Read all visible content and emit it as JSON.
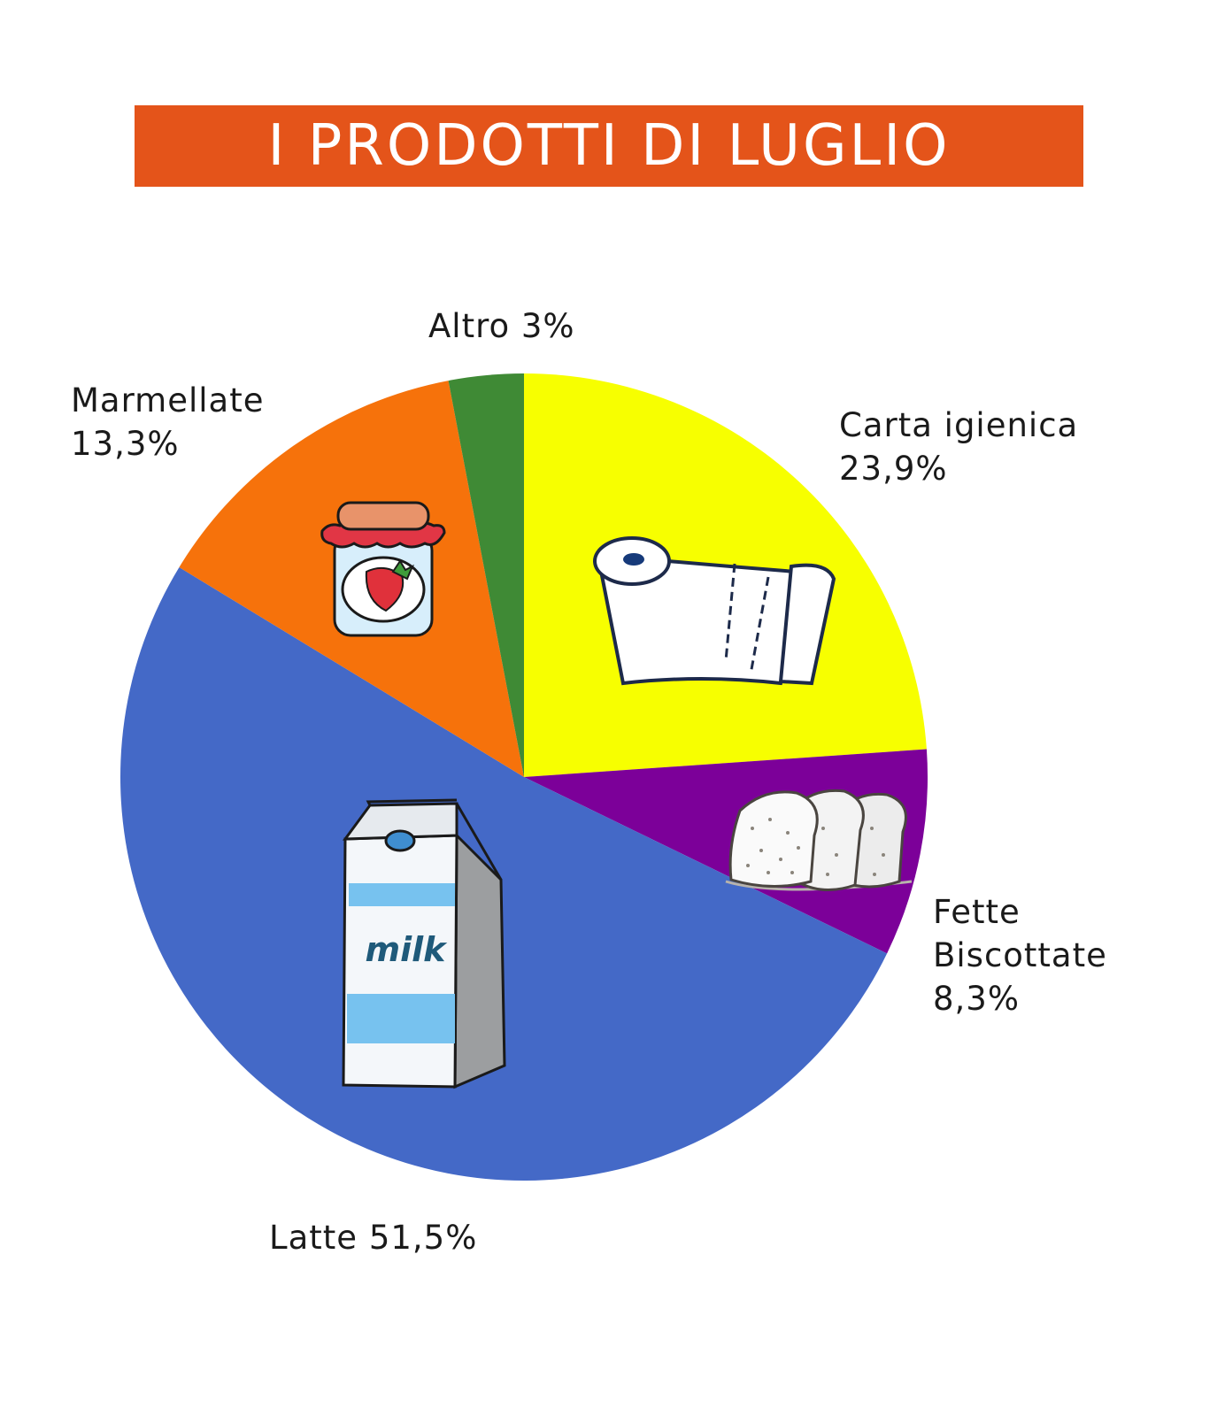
{
  "chart_data": {
    "type": "pie",
    "title": "I PRODOTTI DI LUGLIO",
    "slices": [
      {
        "name": "Carta igienica",
        "value": 23.9,
        "label_lines": [
          "Carta igienica",
          "23,9%"
        ],
        "color": "#f7ff00",
        "icon": "toilet-paper-icon"
      },
      {
        "name": "Fette Biscottate",
        "value": 8.3,
        "label_lines": [
          "Fette",
          "Biscottate",
          "8,3%"
        ],
        "color": "#7c0099",
        "icon": "toast-icon"
      },
      {
        "name": "Latte",
        "value": 51.5,
        "label_lines": [
          "Latte 51,5%"
        ],
        "color": "#4469c7",
        "icon": "milk-carton-icon"
      },
      {
        "name": "Marmellate",
        "value": 13.3,
        "label_lines": [
          "Marmellate",
          "13,3%"
        ],
        "color": "#f6720b",
        "icon": "jam-jar-icon"
      },
      {
        "name": "Altro",
        "value": 3,
        "label_lines": [
          "Altro 3%"
        ],
        "color": "#3f8a35",
        "icon": ""
      }
    ],
    "start": "12 o'clock",
    "direction": "clockwise",
    "milk_carton_text": "milk",
    "title_color": "#e4541a"
  }
}
